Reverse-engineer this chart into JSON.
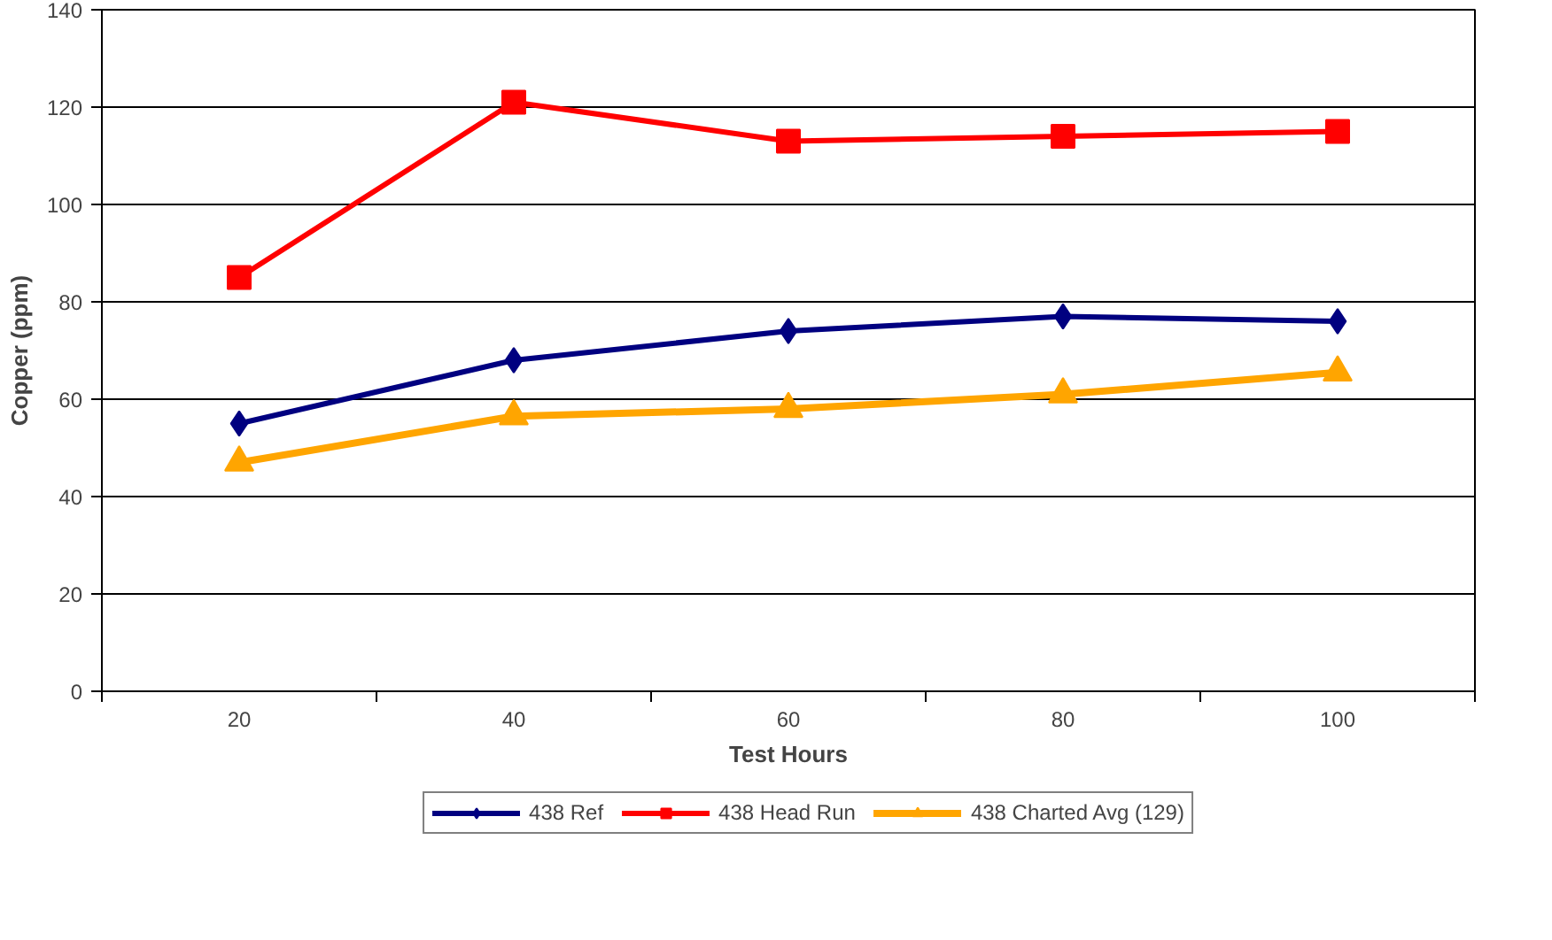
{
  "chart_data": {
    "type": "line",
    "xlabel": "Test Hours",
    "ylabel": "Copper (ppm)",
    "categories": [
      "20",
      "40",
      "60",
      "80",
      "100"
    ],
    "ylim": [
      0,
      140
    ],
    "yticks": [
      0,
      20,
      40,
      60,
      80,
      100,
      120,
      140
    ],
    "grid": "y",
    "legend": "bottom",
    "series": [
      {
        "name": "438 Ref",
        "color": "#000080",
        "marker": "diamond",
        "values": [
          55,
          68,
          74,
          77,
          76
        ]
      },
      {
        "name": "438 Head Run",
        "color": "#ff0000",
        "marker": "square",
        "values": [
          85,
          121,
          113,
          114,
          115
        ]
      },
      {
        "name": "438 Charted Avg (129)",
        "color": "#ffa500",
        "marker": "triangle",
        "values": [
          47,
          56.5,
          58,
          61,
          65.5
        ]
      }
    ]
  }
}
